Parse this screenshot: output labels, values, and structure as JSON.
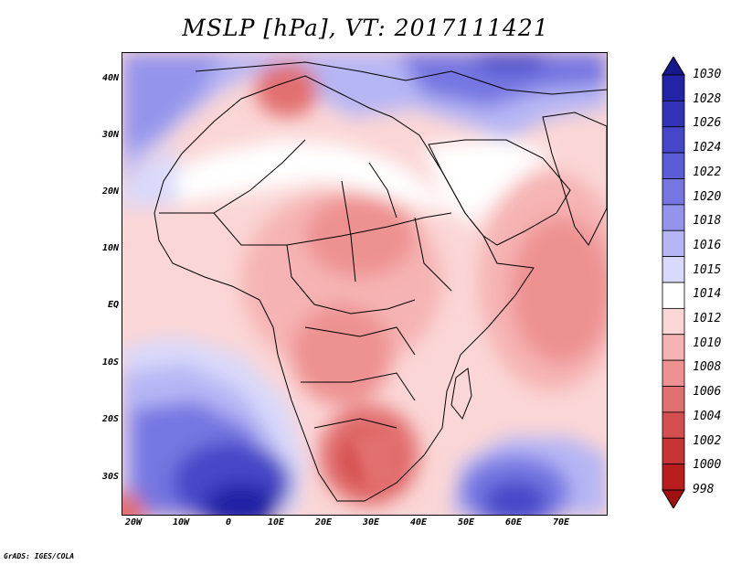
{
  "title": "MSLP [hPa], VT: 2017111421",
  "credit": "GrADS: IGES/COLA",
  "map": {
    "field": "Mean sea level pressure",
    "units": "hPa",
    "lat_labels": [
      "40N",
      "30N",
      "20N",
      "10N",
      "EQ",
      "10S",
      "20S",
      "30S"
    ],
    "lon_labels": [
      "20W",
      "10W",
      "0",
      "10E",
      "20E",
      "30E",
      "40E",
      "50E",
      "60E",
      "70E"
    ],
    "extent_lon": [
      -22,
      80
    ],
    "extent_lat": [
      -36,
      45
    ]
  },
  "legend": {
    "levels": [
      "1030",
      "1028",
      "1026",
      "1024",
      "1022",
      "1020",
      "1018",
      "1016",
      "1015",
      "1014",
      "1012",
      "1010",
      "1008",
      "1006",
      "1004",
      "1002",
      "1000",
      "998"
    ],
    "colors": [
      "#18188c",
      "#2323a5",
      "#3333b8",
      "#4646c8",
      "#5c5cd6",
      "#7676e2",
      "#9494ec",
      "#b6b6f5",
      "#d9d9fb",
      "#ffffff",
      "#fbd6d6",
      "#f6b3b3",
      "#ee9191",
      "#e27070",
      "#d64f4f",
      "#c83333",
      "#b81e1e",
      "#a01010"
    ]
  }
}
